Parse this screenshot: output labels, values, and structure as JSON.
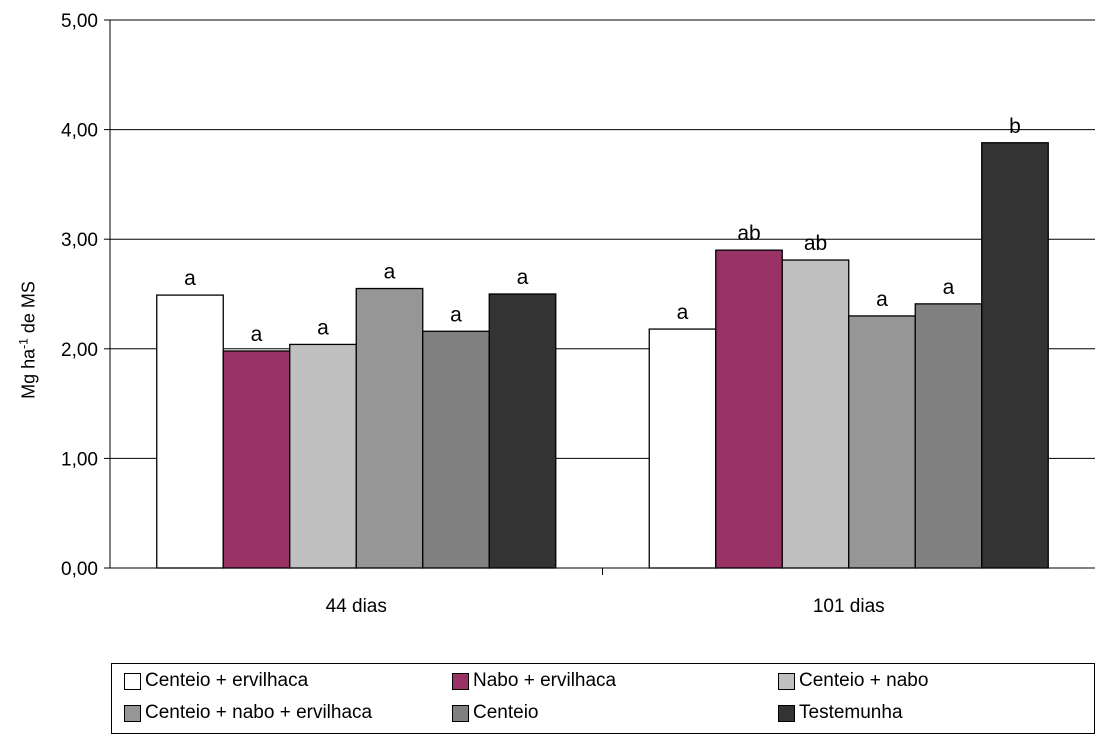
{
  "chart_data": {
    "type": "bar",
    "categories": [
      "44 dias",
      "101 dias"
    ],
    "series": [
      {
        "name": "Centeio + ervilhaca",
        "color": "#ffffff",
        "values": [
          2.49,
          2.18
        ],
        "labels": [
          "a",
          "a"
        ]
      },
      {
        "name": "Nabo + ervilhaca",
        "color": "#993366",
        "values": [
          1.98,
          2.9
        ],
        "labels": [
          "a",
          "ab"
        ]
      },
      {
        "name": "Centeio + nabo",
        "color": "#c0c0c0",
        "values": [
          2.04,
          2.81
        ],
        "labels": [
          "a",
          "ab"
        ]
      },
      {
        "name": "Centeio + nabo + ervilhaca",
        "color": "#969696",
        "values": [
          2.55,
          2.3
        ],
        "labels": [
          "a",
          "a"
        ]
      },
      {
        "name": "Centeio",
        "color": "#808080",
        "values": [
          2.16,
          2.41
        ],
        "labels": [
          "a",
          "a"
        ]
      },
      {
        "name": "Testemunha",
        "color": "#333333",
        "values": [
          2.5,
          3.88
        ],
        "labels": [
          "a",
          "b"
        ]
      }
    ],
    "ylabel": {
      "main": "Mg ha",
      "sup": "-1",
      "rest": " de MS"
    },
    "ylim": [
      0,
      5
    ],
    "yticks": [
      "0,00",
      "1,00",
      "2,00",
      "3,00",
      "4,00",
      "5,00"
    ],
    "grid": true,
    "legend_position": "bottom"
  }
}
